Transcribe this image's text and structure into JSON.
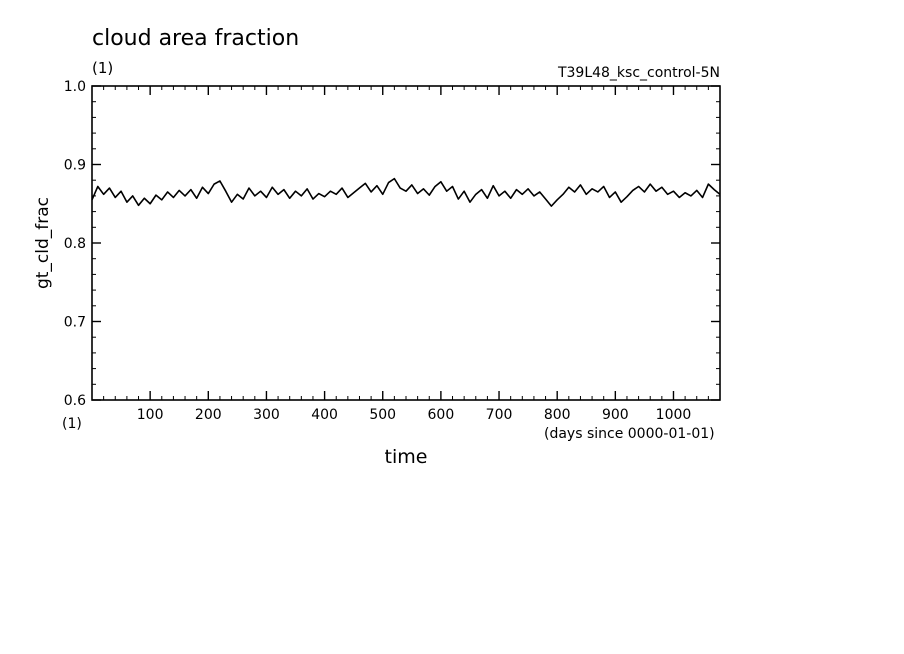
{
  "chart_data": {
    "type": "line",
    "title": "cloud area fraction",
    "units": "(1)",
    "run_label": "T39L48_ksc_control-5N",
    "ylabel": "gt_cld_frac",
    "y_units": "(1)",
    "xlabel": "time",
    "x_units": "(days since 0000-01-01)",
    "xlim": [
      0,
      1080
    ],
    "ylim": [
      0.6,
      1.0
    ],
    "x_ticks": [
      100,
      200,
      300,
      400,
      500,
      600,
      700,
      800,
      900,
      1000
    ],
    "x_tick_labels": [
      "100",
      "200",
      "300",
      "400",
      "500",
      "600",
      "700",
      "800",
      "900",
      "1000"
    ],
    "y_ticks": [
      0.6,
      0.7,
      0.8,
      0.9,
      1.0
    ],
    "y_tick_labels": [
      "0.6",
      "0.7",
      "0.8",
      "0.9",
      "1.0"
    ],
    "grid": false,
    "line_color": "#000000",
    "series": [
      {
        "x": [
          0,
          10,
          20,
          30,
          40,
          50,
          60,
          70,
          80,
          90,
          100,
          110,
          120,
          130,
          140,
          150,
          160,
          170,
          180,
          190,
          200,
          210,
          220,
          230,
          240,
          250,
          260,
          270,
          280,
          290,
          300,
          310,
          320,
          330,
          340,
          350,
          360,
          370,
          380,
          390,
          400,
          410,
          420,
          430,
          440,
          450,
          460,
          470,
          480,
          490,
          500,
          510,
          520,
          530,
          540,
          550,
          560,
          570,
          580,
          590,
          600,
          610,
          620,
          630,
          640,
          650,
          660,
          670,
          680,
          690,
          700,
          710,
          720,
          730,
          740,
          750,
          760,
          770,
          780,
          790,
          800,
          810,
          820,
          830,
          840,
          850,
          860,
          870,
          880,
          890,
          900,
          910,
          920,
          930,
          940,
          950,
          960,
          970,
          980,
          990,
          1000,
          1010,
          1020,
          1030,
          1040,
          1050,
          1060,
          1070,
          1080
        ],
        "values": [
          0.855,
          0.872,
          0.862,
          0.87,
          0.858,
          0.866,
          0.852,
          0.86,
          0.848,
          0.857,
          0.85,
          0.861,
          0.855,
          0.865,
          0.858,
          0.867,
          0.86,
          0.868,
          0.857,
          0.871,
          0.863,
          0.875,
          0.879,
          0.866,
          0.852,
          0.862,
          0.856,
          0.87,
          0.86,
          0.866,
          0.858,
          0.871,
          0.862,
          0.868,
          0.857,
          0.866,
          0.86,
          0.869,
          0.856,
          0.863,
          0.859,
          0.866,
          0.862,
          0.87,
          0.858,
          0.864,
          0.87,
          0.876,
          0.865,
          0.873,
          0.862,
          0.877,
          0.882,
          0.87,
          0.866,
          0.874,
          0.863,
          0.869,
          0.861,
          0.872,
          0.878,
          0.866,
          0.872,
          0.856,
          0.866,
          0.852,
          0.862,
          0.868,
          0.857,
          0.873,
          0.86,
          0.866,
          0.857,
          0.868,
          0.862,
          0.869,
          0.86,
          0.865,
          0.856,
          0.847,
          0.855,
          0.862,
          0.871,
          0.865,
          0.874,
          0.862,
          0.869,
          0.865,
          0.872,
          0.858,
          0.865,
          0.852,
          0.859,
          0.867,
          0.872,
          0.865,
          0.875,
          0.866,
          0.871,
          0.862,
          0.866,
          0.858,
          0.864,
          0.86,
          0.867,
          0.858,
          0.875,
          0.868,
          0.862
        ]
      }
    ]
  }
}
